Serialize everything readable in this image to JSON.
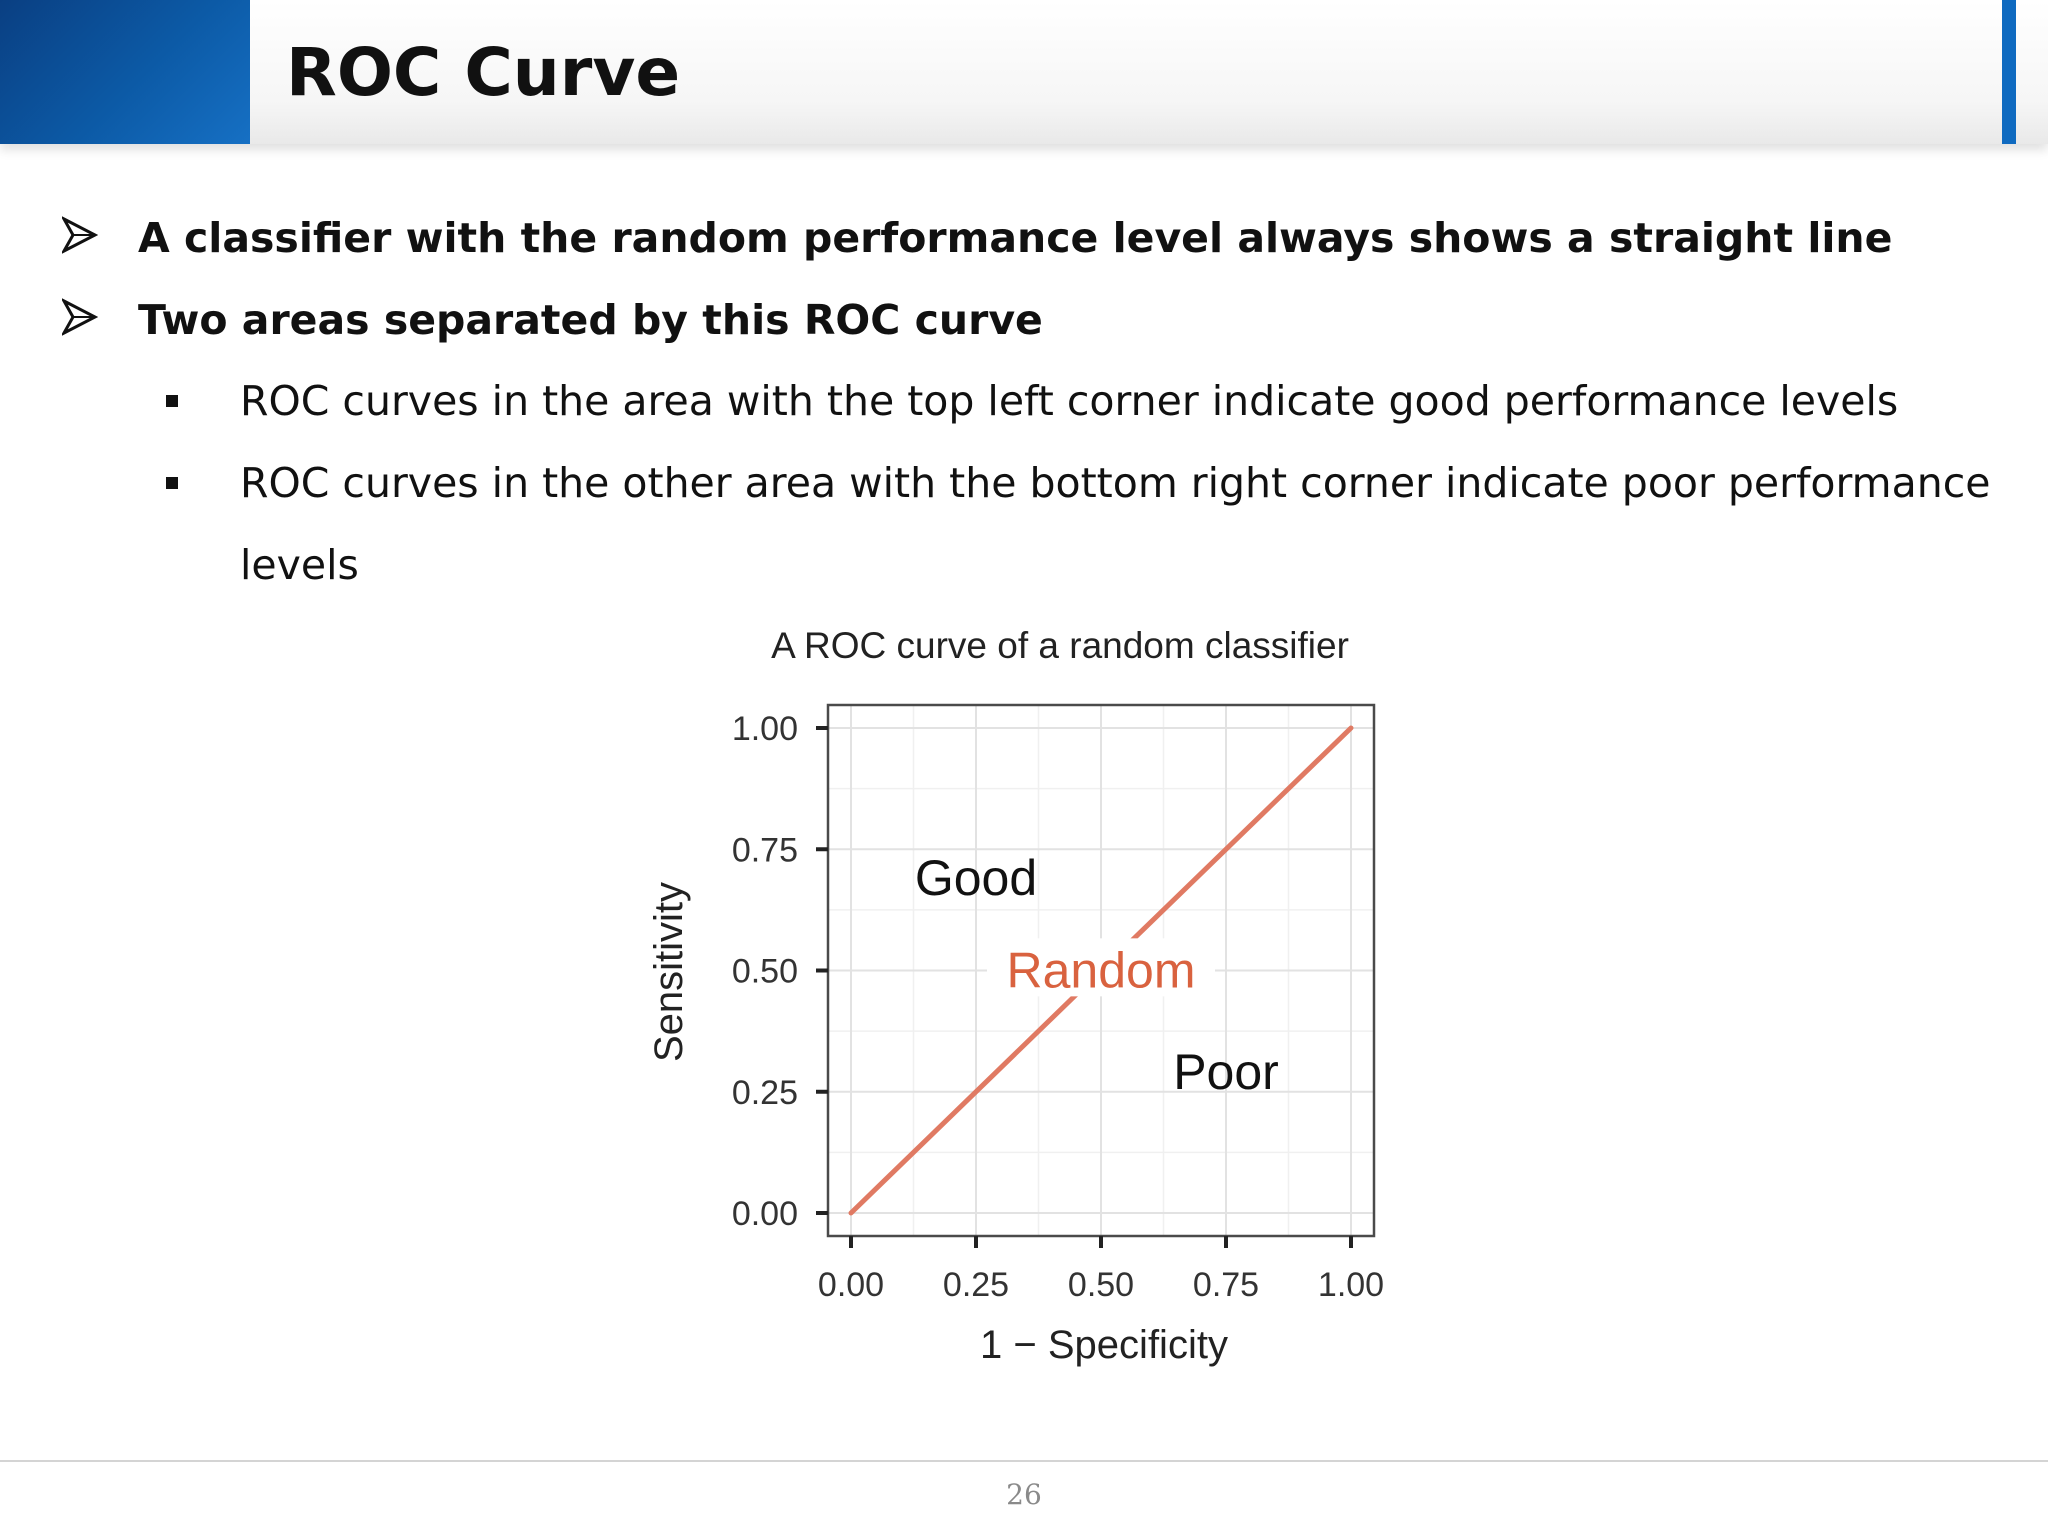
{
  "slide": {
    "title": "ROC Curve",
    "page_number": "26"
  },
  "bullets": [
    {
      "level": 1,
      "text": "A classifier with the random performance level always shows a straight line"
    },
    {
      "level": 1,
      "text": "Two areas separated by this ROC curve"
    },
    {
      "level": 2,
      "text": "ROC curves in the area with the top left corner indicate good performance levels"
    },
    {
      "level": 2,
      "text": "ROC curves in the other area with the bottom right corner indicate poor performance levels"
    }
  ],
  "colors": {
    "header_accent": "#0c5aa6",
    "curve": "#e07a63",
    "random_label": "#d9623f"
  },
  "chart_data": {
    "type": "line",
    "title": "A ROC curve of a random classifier",
    "xlabel": "1 − Specificity",
    "ylabel": "Sensitivity",
    "xlim": [
      0,
      1
    ],
    "ylim": [
      0,
      1
    ],
    "xticks": [
      "0.00",
      "0.25",
      "0.50",
      "0.75",
      "1.00"
    ],
    "yticks": [
      "0.00",
      "0.25",
      "0.50",
      "0.75",
      "1.00"
    ],
    "grid": true,
    "legend": "none",
    "series": [
      {
        "x": [
          0,
          1
        ],
        "y": [
          0,
          1
        ]
      }
    ],
    "annotations": [
      {
        "text": "Good",
        "x": 0.25,
        "y": 0.68
      },
      {
        "text": "Random",
        "x": 0.5,
        "y": 0.49
      },
      {
        "text": "Poor",
        "x": 0.75,
        "y": 0.28
      }
    ]
  }
}
